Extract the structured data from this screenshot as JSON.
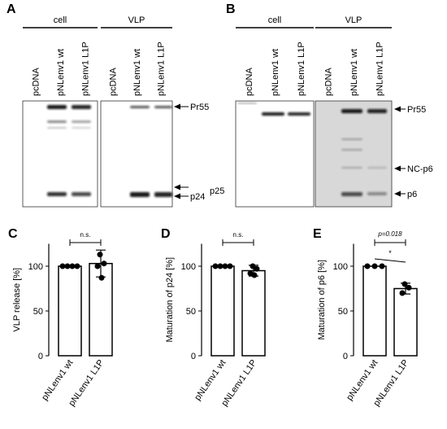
{
  "blot_a": {
    "letter": "A",
    "groups": [
      "cell",
      "VLP"
    ],
    "lanes": [
      "pcDNA",
      "pNLenv1 wt",
      "pNLenv1 L1P",
      "pcDNA",
      "pNLenv1 wt",
      "pNLenv1 L1P"
    ],
    "markers": [
      "Pr55",
      "p24",
      "p25"
    ]
  },
  "blot_b": {
    "letter": "B",
    "groups": [
      "cell",
      "VLP"
    ],
    "lanes": [
      "pcDNA",
      "pNLenv1 wt",
      "pNLenv1 L1P",
      "pcDNA",
      "pNLenv1 wt",
      "pNLenv1 L1P"
    ],
    "markers": [
      "Pr55",
      "NC-p6",
      "p6"
    ]
  },
  "chart_data": [
    {
      "type": "bar",
      "letter": "C",
      "ylabel": "VLP release [%]",
      "categories": [
        "pNLenv1 wt",
        "pNLenv1 L1P"
      ],
      "values": [
        100,
        103
      ],
      "errors": [
        0,
        15
      ],
      "points": [
        [
          100,
          100,
          100,
          100
        ],
        [
          113,
          103,
          100,
          87
        ]
      ],
      "ylim": [
        0,
        125
      ],
      "yticks": [
        0,
        50,
        100
      ],
      "annotations": [
        "n.s."
      ]
    },
    {
      "type": "bar",
      "letter": "D",
      "ylabel": "Maturation of p24 [%]",
      "categories": [
        "pNLenv1 wt",
        "pNLenv1 L1P"
      ],
      "values": [
        100,
        95
      ],
      "errors": [
        0,
        6
      ],
      "points": [
        [
          100,
          100,
          100,
          100
        ],
        [
          100,
          97,
          92,
          90
        ]
      ],
      "ylim": [
        0,
        125
      ],
      "yticks": [
        0,
        50,
        100
      ],
      "annotations": [
        "n.s."
      ]
    },
    {
      "type": "bar",
      "letter": "E",
      "ylabel": "Maturation of p6 [%]",
      "categories": [
        "pNLenv1 wt",
        "pNLenv1 L1P"
      ],
      "values": [
        100,
        75
      ],
      "errors": [
        0,
        6
      ],
      "points": [
        [
          100,
          100,
          100
        ],
        [
          80,
          76,
          70
        ]
      ],
      "ylim": [
        0,
        125
      ],
      "yticks": [
        0,
        50,
        100
      ],
      "annotations": [
        "p=0.018",
        "*"
      ]
    }
  ]
}
